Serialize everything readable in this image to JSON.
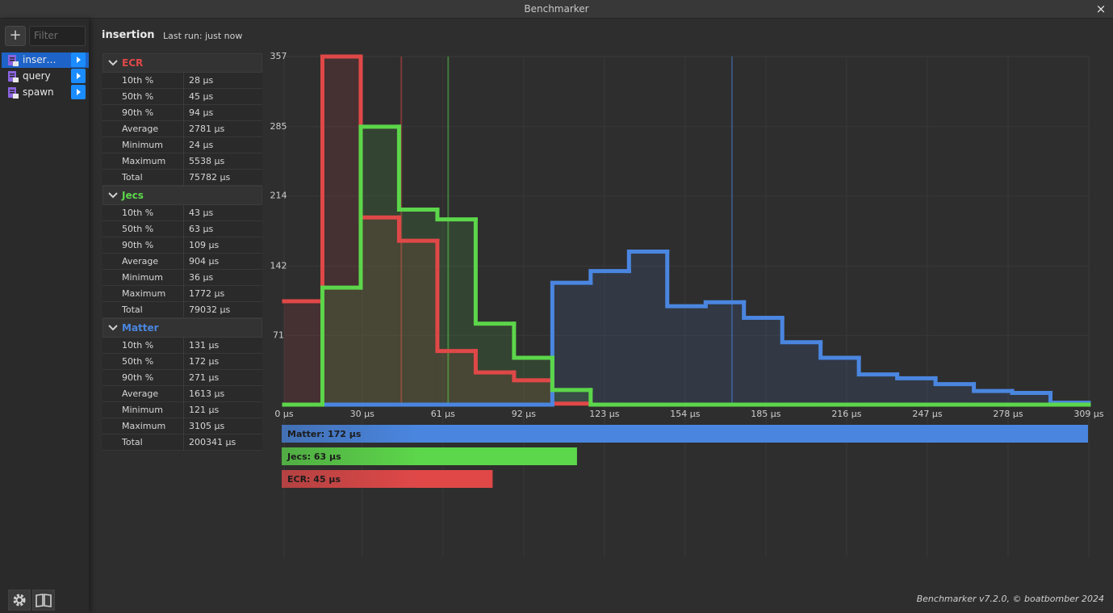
{
  "window": {
    "title": "Benchmarker",
    "close": "×"
  },
  "sidebar": {
    "add": "+",
    "filter_placeholder": "Filter",
    "items": [
      "inser…",
      "query",
      "spawn"
    ]
  },
  "header": {
    "title": "insertion",
    "last_run": "Last run: just now"
  },
  "stats": [
    {
      "rows": [
        [
          "10th %",
          "28 µs"
        ],
        [
          "50th %",
          "45 µs"
        ],
        [
          "90th %",
          "94 µs"
        ],
        [
          "Average",
          "2781 µs"
        ],
        [
          "Minimum",
          "24 µs"
        ],
        [
          "Maximum",
          "5538 µs"
        ],
        [
          "Total",
          "75782 µs"
        ]
      ]
    },
    {
      "rows": [
        [
          "10th %",
          "43 µs"
        ],
        [
          "50th %",
          "63 µs"
        ],
        [
          "90th %",
          "109 µs"
        ],
        [
          "Average",
          "904 µs"
        ],
        [
          "Minimum",
          "36 µs"
        ],
        [
          "Maximum",
          "1772 µs"
        ],
        [
          "Total",
          "79032 µs"
        ]
      ]
    },
    {
      "rows": [
        [
          "10th %",
          "131 µs"
        ],
        [
          "50th %",
          "172 µs"
        ],
        [
          "90th %",
          "271 µs"
        ],
        [
          "Average",
          "1613 µs"
        ],
        [
          "Minimum",
          "121 µs"
        ],
        [
          "Maximum",
          "3105 µs"
        ],
        [
          "Total",
          "200341 µs"
        ]
      ]
    }
  ],
  "chart_data": [
    {
      "type": "histogram",
      "bins": [
        0,
        14.71,
        29.43,
        44.14,
        58.86,
        73.57,
        88.29,
        103,
        117.71,
        132.43,
        147.14,
        161.86,
        176.57,
        191.29,
        206,
        220.71,
        235.43,
        250.14,
        264.86,
        279.57,
        294.29,
        309
      ],
      "series": [
        {
          "name": "ECR",
          "color": "#e04848",
          "median": 45,
          "values": [
            106,
            357,
            192,
            168,
            55,
            33,
            25,
            1,
            0,
            0,
            0,
            0,
            0,
            0,
            0,
            0,
            0,
            0,
            0,
            0,
            0
          ]
        },
        {
          "name": "Matter",
          "color": "#4a86e0",
          "median": 172,
          "values": [
            0,
            0,
            0,
            0,
            0,
            0,
            0,
            125,
            137,
            157,
            101,
            105,
            89,
            64,
            48,
            31,
            27,
            21,
            14,
            12,
            2
          ]
        },
        {
          "name": "Jecs",
          "color": "#5cd64a",
          "median": 63,
          "values": [
            0,
            120,
            285,
            200,
            190,
            83,
            48,
            15,
            0,
            0,
            0,
            0,
            0,
            0,
            0,
            0,
            0,
            0,
            0,
            0,
            0
          ]
        }
      ],
      "xlim": [
        0,
        309
      ],
      "xticks": [
        {
          "value": 0,
          "label": "0 µs"
        },
        {
          "value": 30,
          "label": "30 µs"
        },
        {
          "value": 61,
          "label": "61 µs"
        },
        {
          "value": 92,
          "label": "92 µs"
        },
        {
          "value": 123,
          "label": "123 µs"
        },
        {
          "value": 154,
          "label": "154 µs"
        },
        {
          "value": 185,
          "label": "185 µs"
        },
        {
          "value": 216,
          "label": "216 µs"
        },
        {
          "value": 247,
          "label": "247 µs"
        },
        {
          "value": 278,
          "label": "278 µs"
        },
        {
          "value": 309,
          "label": "309 µs"
        }
      ],
      "ylim": [
        0,
        357
      ],
      "yticks": [
        71,
        142,
        214,
        285,
        357
      ],
      "grid": true
    },
    {
      "type": "bar",
      "orientation": "horizontal",
      "values": [
        172,
        63,
        45
      ],
      "value_labels": [
        "Matter: 172 µs",
        "Jecs: 63 µs",
        "ECR: 45 µs"
      ],
      "colors": [
        "#4a86e0",
        "#5cd64a",
        "#e04848"
      ]
    }
  ],
  "footer": "Benchmarker v7.2.0, © boatbomber 2024"
}
